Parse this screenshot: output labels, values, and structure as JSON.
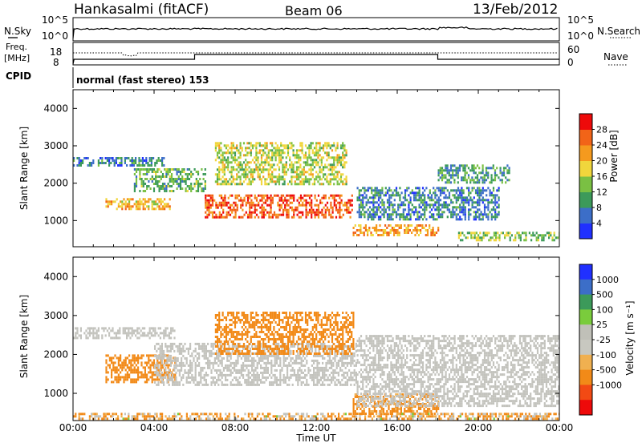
{
  "header": {
    "station": "Hankasalmi (fitACF)",
    "beam": "Beam 06",
    "date": "13/Feb/2012"
  },
  "noise_panel": {
    "left_label": "N.Sky",
    "right_label": "N.Search",
    "left_ticks": [
      "10^5",
      "10^0"
    ],
    "right_ticks": [
      "10^5",
      "10^0"
    ]
  },
  "freq_panel": {
    "left_label_1": "Freq.",
    "left_label_2": "[MHz]",
    "right_label": "Nave",
    "left_ticks": [
      "18",
      "8"
    ],
    "right_ticks": [
      "60",
      "0"
    ]
  },
  "cpid": {
    "label": "CPID",
    "text": "normal (fast stereo) 153"
  },
  "colors": {
    "power_scale": [
      "#2030ff",
      "#3c6ec8",
      "#3c9a5a",
      "#7ac043",
      "#f0d63c",
      "#f59a1e",
      "#f26418",
      "#ee0a0a"
    ],
    "velocity_scale": [
      "#ee0a0a",
      "#f24a14",
      "#f28a18",
      "#f0b050",
      "#c8c8c0",
      "#c0c0b8",
      "#7acc3c",
      "#3c9a5a",
      "#3c6ec8",
      "#2030ff"
    ],
    "ground_scatter": "#c3c3bd"
  },
  "chart_data": [
    {
      "type": "heatmap",
      "name": "power",
      "ylabel": "Slant Range [km]",
      "y_ticks": [
        "1000",
        "2000",
        "3000",
        "4000"
      ],
      "ylim": [
        300,
        4500
      ],
      "xlim": [
        0,
        24
      ],
      "colorbar_label": "Power [dB]",
      "colorbar_ticks": [
        "4",
        "8",
        "12",
        "16",
        "20",
        "24",
        "28"
      ],
      "colorbar_range": [
        0,
        32
      ],
      "features": [
        {
          "t_start": 0.0,
          "t_end": 4.5,
          "range_start": 2450,
          "range_end": 2700,
          "level": 8
        },
        {
          "t_start": 1.6,
          "t_end": 4.8,
          "range_start": 1300,
          "range_end": 1600,
          "level": 20
        },
        {
          "t_start": 3.0,
          "t_end": 6.5,
          "range_start": 1800,
          "range_end": 2400,
          "level": 12
        },
        {
          "t_start": 6.5,
          "t_end": 13.8,
          "range_start": 1100,
          "range_end": 1700,
          "level": 26
        },
        {
          "t_start": 7.0,
          "t_end": 13.5,
          "range_start": 2000,
          "range_end": 3100,
          "level": 16
        },
        {
          "t_start": 13.8,
          "t_end": 18.0,
          "range_start": 600,
          "range_end": 900,
          "level": 22
        },
        {
          "t_start": 14.0,
          "t_end": 21.0,
          "range_start": 1000,
          "range_end": 1900,
          "level": 8
        },
        {
          "t_start": 18.0,
          "t_end": 21.5,
          "range_start": 2000,
          "range_end": 2500,
          "level": 10
        },
        {
          "t_start": 19.0,
          "t_end": 24.0,
          "range_start": 500,
          "range_end": 700,
          "level": 14
        }
      ]
    },
    {
      "type": "heatmap",
      "name": "velocity",
      "ylabel": "Slant Range [km]",
      "y_ticks": [
        "1000",
        "2000",
        "3000",
        "4000"
      ],
      "ylim": [
        300,
        4500
      ],
      "xlim": [
        0,
        24
      ],
      "x_ticks": [
        "00:00",
        "04:00",
        "08:00",
        "12:00",
        "16:00",
        "20:00",
        "00:00"
      ],
      "xlabel": "Time UT",
      "colorbar_label": "Velocity [m s⁻¹]",
      "colorbar_ticks": [
        "1000",
        "500",
        "100",
        "25",
        "-25",
        "-100",
        "-500",
        "-1000"
      ],
      "features": [
        {
          "t_start": 0.0,
          "t_end": 5.0,
          "range_start": 2450,
          "range_end": 2700,
          "velocity": 0
        },
        {
          "t_start": 1.6,
          "t_end": 5.0,
          "range_start": 1300,
          "range_end": 2000,
          "velocity": -250
        },
        {
          "t_start": 4.0,
          "t_end": 14.0,
          "range_start": 1200,
          "range_end": 2300,
          "velocity": 0
        },
        {
          "t_start": 7.0,
          "t_end": 13.8,
          "range_start": 2000,
          "range_end": 3100,
          "velocity": -300
        },
        {
          "t_start": 13.8,
          "t_end": 18.0,
          "range_start": 450,
          "range_end": 1000,
          "velocity": -200
        },
        {
          "t_start": 14.0,
          "t_end": 24.0,
          "range_start": 700,
          "range_end": 2500,
          "velocity": 0
        },
        {
          "t_start": 0.0,
          "t_end": 24.0,
          "range_start": 300,
          "range_end": 500,
          "velocity": -100
        }
      ]
    }
  ]
}
